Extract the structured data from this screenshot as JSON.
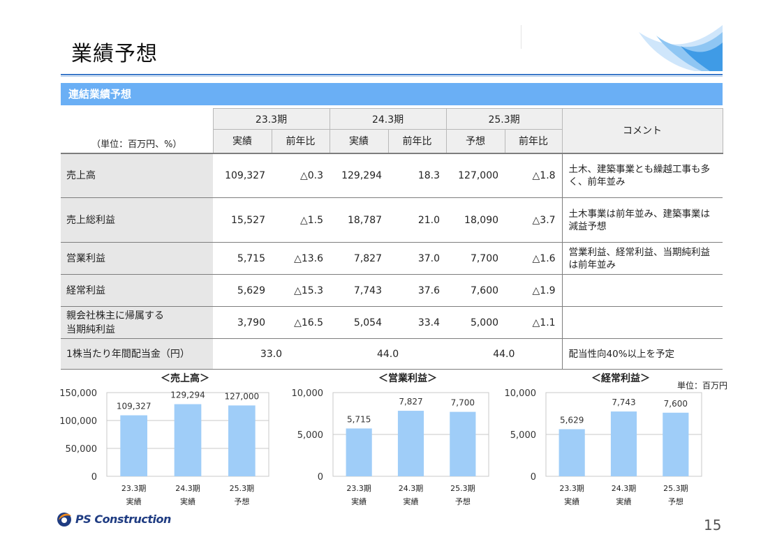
{
  "page": {
    "title": "業績予想",
    "number": "15"
  },
  "section": {
    "heading": "連結業績予想"
  },
  "table": {
    "unit_note": "（単位：百万円、%）",
    "periods": [
      "23.3期",
      "24.3期",
      "25.3期"
    ],
    "subheaders": [
      "実績",
      "前年比",
      "実績",
      "前年比",
      "予想",
      "前年比"
    ],
    "comment_header": "コメント",
    "rows": [
      {
        "label": "売上高",
        "values": [
          "109,327",
          "△0.3",
          "129,294",
          "18.3",
          "127,000",
          "△1.8"
        ],
        "comment": "土木、建築事業とも繰越工事も多く、前年並み"
      },
      {
        "label": "売上総利益",
        "values": [
          "15,527",
          "△1.5",
          "18,787",
          "21.0",
          "18,090",
          "△3.7"
        ],
        "comment": "土木事業は前年並み、建築事業は減益予想"
      },
      {
        "label": "営業利益",
        "values": [
          "5,715",
          "△13.6",
          "7,827",
          "37.0",
          "7,700",
          "△1.6"
        ],
        "comment": "営業利益、経常利益、当期純利益は前年並み"
      },
      {
        "label": "経常利益",
        "values": [
          "5,629",
          "△15.3",
          "7,743",
          "37.6",
          "7,600",
          "△1.9"
        ],
        "comment": ""
      },
      {
        "label": "親会社株主に帰属する当期純利益",
        "label_line1": "親会社株主に帰属する",
        "label_line2": "当期純利益",
        "values": [
          "3,790",
          "△16.5",
          "5,054",
          "33.4",
          "5,000",
          "△1.1"
        ],
        "comment": ""
      }
    ],
    "dividend": {
      "label": "1株当たり年間配当金（円）",
      "values": [
        "33.0",
        "44.0",
        "44.0"
      ],
      "comment": "配当性向40%以上を予定"
    }
  },
  "chart_unit_note": "単位：百万円",
  "chart_data": [
    {
      "type": "bar",
      "title": "＜売上高＞",
      "categories": [
        "23.3期 実績",
        "24.3期 実績",
        "25.3期 予想"
      ],
      "category_lines": [
        [
          "23.3期",
          "実績"
        ],
        [
          "24.3期",
          "実績"
        ],
        [
          "25.3期",
          "予想"
        ]
      ],
      "values": [
        109327,
        129294,
        127000
      ],
      "value_labels": [
        "109,327",
        "129,294",
        "127,000"
      ],
      "ylim": [
        0,
        150000
      ],
      "yticks": [
        0,
        50000,
        100000,
        150000
      ],
      "ytick_labels": [
        "0",
        "50,000",
        "100,000",
        "150,000"
      ],
      "grid": true,
      "color": "#9fcdf8"
    },
    {
      "type": "bar",
      "title": "＜営業利益＞",
      "categories": [
        "23.3期 実績",
        "24.3期 実績",
        "25.3期 予想"
      ],
      "category_lines": [
        [
          "23.3期",
          "実績"
        ],
        [
          "24.3期",
          "実績"
        ],
        [
          "25.3期",
          "予想"
        ]
      ],
      "values": [
        5715,
        7827,
        7700
      ],
      "value_labels": [
        "5,715",
        "7,827",
        "7,700"
      ],
      "ylim": [
        0,
        10000
      ],
      "yticks": [
        0,
        5000,
        10000
      ],
      "ytick_labels": [
        "0",
        "5,000",
        "10,000"
      ],
      "grid": true,
      "color": "#9fcdf8"
    },
    {
      "type": "bar",
      "title": "＜経常利益＞",
      "categories": [
        "23.3期 実績",
        "24.3期 実績",
        "25.3期 予想"
      ],
      "category_lines": [
        [
          "23.3期",
          "実績"
        ],
        [
          "24.3期",
          "実績"
        ],
        [
          "25.3期",
          "予想"
        ]
      ],
      "values": [
        5629,
        7743,
        7600
      ],
      "value_labels": [
        "5,629",
        "7,743",
        "7,600"
      ],
      "ylim": [
        0,
        10000
      ],
      "yticks": [
        0,
        5000,
        10000
      ],
      "ytick_labels": [
        "0",
        "5,000",
        "10,000"
      ],
      "grid": true,
      "color": "#9fcdf8"
    }
  ],
  "logo": {
    "text": "PS Construction",
    "colors": {
      "orange": "#f08a1c",
      "navy": "#1f3c82"
    }
  }
}
